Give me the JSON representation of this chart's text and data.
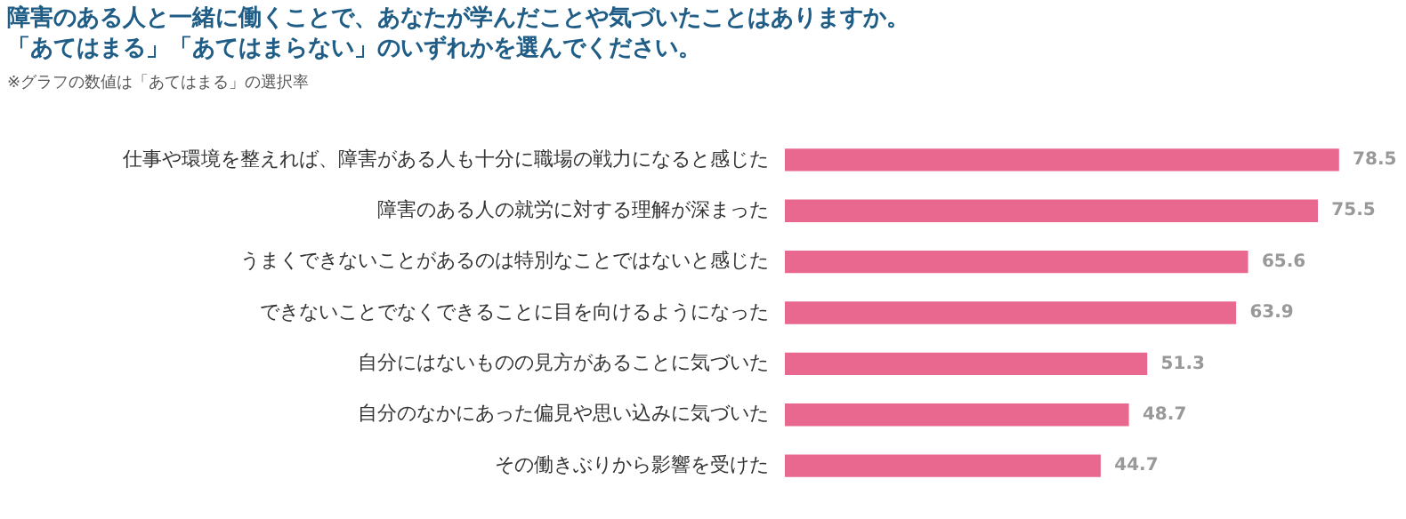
{
  "chart_data": {
    "type": "bar",
    "orientation": "horizontal",
    "title": "障害のある人と一緒に働くことで、あなたが学んだことや気づいたことはありますか。",
    "subtitle": "「あてはまる」「あてはまらない」のいずれかを選んでください。",
    "annotations": [
      "※グラフの数値は「あてはまる」の選択率"
    ],
    "categories": [
      "仕事や環境を整えれば、障害がある人も十分に職場の戦力になると感じた",
      "障害のある人の就労に対する理解が深まった",
      "うまくできないことがあるのは特別なことではないと感じた",
      "できないことでなくできることに目を向けるようになった",
      "自分にはないものの見方があることに気づいた",
      "自分のなかにあった偏見や思い込みに気づいた",
      "その働きぶりから影響を受けた"
    ],
    "values": [
      78.5,
      75.5,
      65.6,
      63.9,
      51.3,
      48.7,
      44.7
    ],
    "color": "#e8688f",
    "data_labels": true,
    "tick_labels": "y",
    "grid": false,
    "legend": false
  }
}
